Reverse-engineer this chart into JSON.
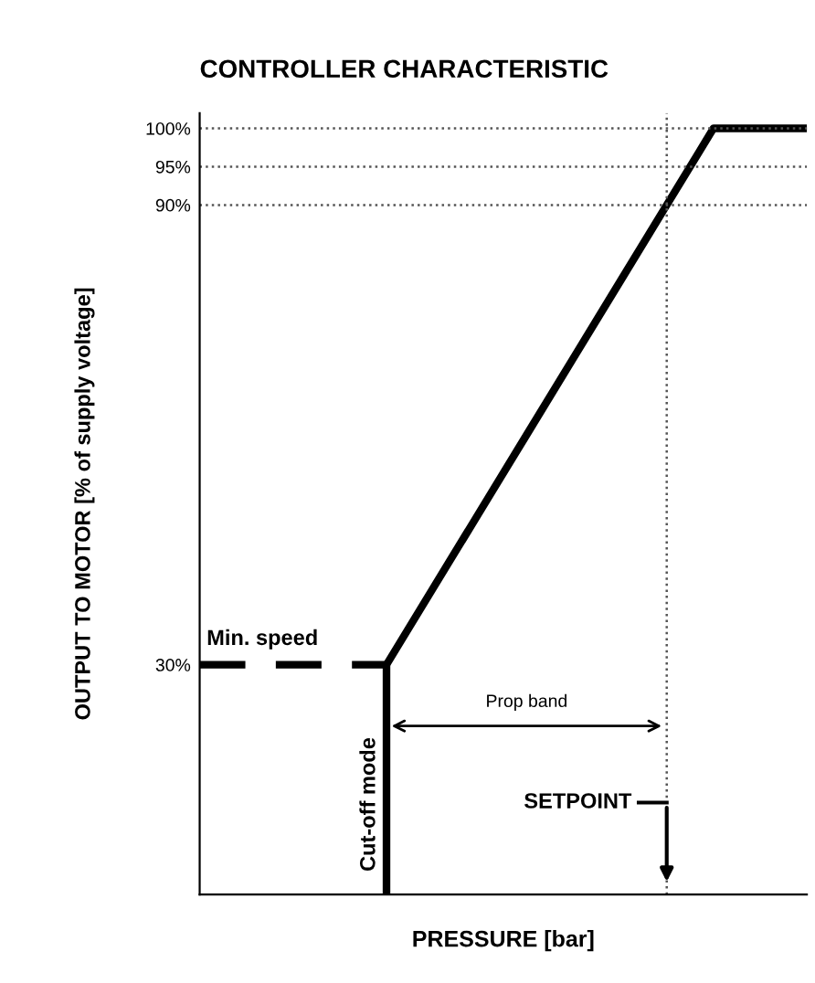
{
  "chart_data": {
    "type": "line",
    "title": "CONTROLLER CHARACTERISTIC",
    "xlabel": "PRESSURE [bar]",
    "ylabel": "OUTPUT TO MOTOR [% of supply voltage]",
    "categories": [
      null,
      null,
      null,
      null,
      null,
      null,
      null,
      null,
      null,
      null,
      null,
      null,
      null,
      null
    ],
    "series": [
      {
        "color": "#000000",
        "values": [
          30,
          30,
          30,
          30,
          30,
          null,
          null,
          null,
          null,
          null,
          null,
          null,
          null,
          null
        ],
        "line_style": "dashed"
      },
      {
        "color": "#000000",
        "values": [
          null,
          null,
          null,
          null,
          30,
          40,
          50,
          60,
          70,
          80,
          90,
          100,
          100,
          100
        ]
      }
    ],
    "ylim": [
      0,
      102
    ],
    "yticks": [
      {
        "value": 30,
        "label": "30%"
      },
      {
        "value": 90,
        "label": "90%"
      },
      {
        "value": 95,
        "label": "95%"
      },
      {
        "value": 100,
        "label": "100%"
      }
    ],
    "tick_labels": "y",
    "grid": false,
    "legend": false,
    "marker": "none",
    "ref_lines": [
      {
        "axis": "y",
        "value": 90,
        "line_style": "dotted",
        "color": "#555555"
      },
      {
        "axis": "y",
        "value": 95,
        "line_style": "dotted",
        "color": "#555555"
      },
      {
        "axis": "y",
        "value": 100,
        "line_style": "dotted",
        "color": "#555555"
      }
    ],
    "annotations": [
      "Min. speed",
      "Cut-off mode",
      "Prop band",
      "SETPOINT"
    ]
  }
}
